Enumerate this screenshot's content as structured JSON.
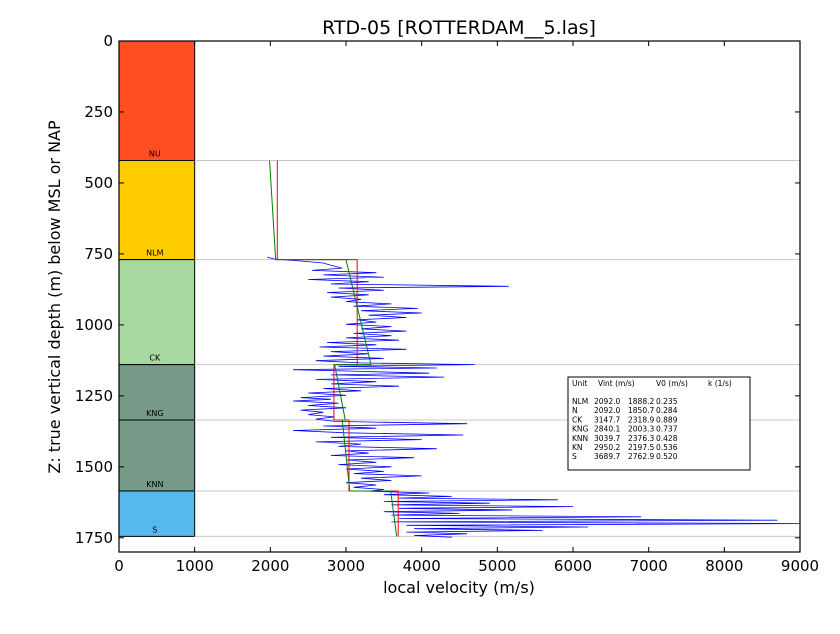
{
  "chart_data": {
    "type": "line",
    "title": "RTD-05 [ROTTERDAM__5.las]",
    "xlabel": "local velocity (m/s)",
    "ylabel": "Z: true vertical depth (m) below MSL or NAP",
    "xlim": [
      0,
      9000
    ],
    "ylim": [
      1800,
      0
    ],
    "y_inverted": true,
    "xticks": [
      0,
      1000,
      2000,
      3000,
      4000,
      5000,
      6000,
      7000,
      8000,
      9000
    ],
    "yticks": [
      0,
      250,
      500,
      750,
      1000,
      1250,
      1500,
      1750
    ],
    "grid": false,
    "colors": {
      "log": "#0000ff",
      "interval_velocity": "#ff0000",
      "v0k_model": "#008000",
      "boundary_line": "#c8c8c8"
    },
    "formations": [
      {
        "name": "NU",
        "top": 0,
        "base": 421,
        "color": "#ff4f22"
      },
      {
        "name": "NLM",
        "top": 421,
        "base": 770,
        "color": "#ffcc00"
      },
      {
        "name": "CK",
        "top": 770,
        "base": 1140,
        "color": "#a6d8a0"
      },
      {
        "name": "KNG",
        "top": 1140,
        "base": 1335,
        "color": "#779988"
      },
      {
        "name": "KNN",
        "top": 1335,
        "base": 1585,
        "color": "#779988"
      },
      {
        "name": "S",
        "top": 1585,
        "base": 1745,
        "color": "#55b9ee"
      }
    ],
    "formation_column_xlim": [
      0,
      1000
    ],
    "table": {
      "header": [
        "Unit",
        "Vint (m/s)",
        "V0 (m/s)",
        "k (1/s)"
      ],
      "rows": [
        [
          "NLM",
          "2092.0",
          "1888.2",
          "0.235"
        ],
        [
          "N",
          "2092.0",
          "1850.7",
          "0.284"
        ],
        [
          "CK",
          "3147.7",
          "2318.9",
          "0.889"
        ],
        [
          "KNG",
          "2840.1",
          "2003.3",
          "0.737"
        ],
        [
          "KNN",
          "3039.7",
          "2376.3",
          "0.428"
        ],
        [
          "KN",
          "2950.2",
          "2197.5",
          "0.536"
        ],
        [
          "S",
          "3689.7",
          "2762.9",
          "0.520"
        ]
      ]
    },
    "series": [
      {
        "kind": "interval_velocity",
        "segments": [
          {
            "top": 421,
            "base": 770,
            "v": 2092.0
          },
          {
            "top": 770,
            "base": 1140,
            "v": 3147.7
          },
          {
            "top": 1140,
            "base": 1335,
            "v": 2840.1
          },
          {
            "top": 1335,
            "base": 1585,
            "v": 3039.7
          },
          {
            "top": 1585,
            "base": 1745,
            "v": 3689.7
          }
        ]
      },
      {
        "kind": "v0k_model",
        "segments": [
          {
            "top": 421,
            "base": 770,
            "v_top": 1990,
            "v_base": 2070
          },
          {
            "top": 770,
            "base": 1140,
            "v_top": 3000,
            "v_base": 3330
          },
          {
            "top": 1140,
            "base": 1335,
            "v_top": 2850,
            "v_base": 2990
          },
          {
            "top": 1335,
            "base": 1585,
            "v_top": 2950,
            "v_base": 3050
          },
          {
            "top": 1585,
            "base": 1745,
            "v_top": 3590,
            "v_base": 3670
          }
        ]
      },
      {
        "kind": "log",
        "points": [
          [
            762,
            1960
          ],
          [
            768,
            2050
          ],
          [
            775,
            2400
          ],
          [
            782,
            2700
          ],
          [
            790,
            2800
          ],
          [
            800,
            2950
          ],
          [
            808,
            2550
          ],
          [
            816,
            3400
          ],
          [
            824,
            2700
          ],
          [
            832,
            3500
          ],
          [
            840,
            2500
          ],
          [
            848,
            3300
          ],
          [
            856,
            2800
          ],
          [
            864,
            5150
          ],
          [
            870,
            2900
          ],
          [
            878,
            3500
          ],
          [
            886,
            2750
          ],
          [
            894,
            3300
          ],
          [
            902,
            2800
          ],
          [
            910,
            3200
          ],
          [
            918,
            3000
          ],
          [
            926,
            3600
          ],
          [
            934,
            3100
          ],
          [
            942,
            3950
          ],
          [
            950,
            3200
          ],
          [
            958,
            4000
          ],
          [
            966,
            3300
          ],
          [
            974,
            3800
          ],
          [
            982,
            3150
          ],
          [
            990,
            3400
          ],
          [
            998,
            3000
          ],
          [
            1006,
            3600
          ],
          [
            1014,
            3200
          ],
          [
            1022,
            3800
          ],
          [
            1030,
            3100
          ],
          [
            1038,
            3600
          ],
          [
            1046,
            3000
          ],
          [
            1054,
            3700
          ],
          [
            1062,
            2750
          ],
          [
            1070,
            3400
          ],
          [
            1078,
            2650
          ],
          [
            1086,
            3800
          ],
          [
            1094,
            2800
          ],
          [
            1102,
            3300
          ],
          [
            1110,
            2700
          ],
          [
            1118,
            3500
          ],
          [
            1126,
            2600
          ],
          [
            1134,
            3200
          ],
          [
            1140,
            4700
          ],
          [
            1146,
            2900
          ],
          [
            1152,
            4200
          ],
          [
            1158,
            2300
          ],
          [
            1164,
            3200
          ],
          [
            1170,
            4100
          ],
          [
            1176,
            2800
          ],
          [
            1184,
            4300
          ],
          [
            1192,
            2600
          ],
          [
            1200,
            3400
          ],
          [
            1208,
            2800
          ],
          [
            1216,
            3700
          ],
          [
            1224,
            2700
          ],
          [
            1232,
            3200
          ],
          [
            1240,
            2500
          ],
          [
            1248,
            3000
          ],
          [
            1256,
            2400
          ],
          [
            1262,
            2800
          ],
          [
            1268,
            2300
          ],
          [
            1276,
            2900
          ],
          [
            1284,
            2500
          ],
          [
            1292,
            3000
          ],
          [
            1300,
            2400
          ],
          [
            1308,
            2700
          ],
          [
            1316,
            2500
          ],
          [
            1324,
            2850
          ],
          [
            1332,
            2600
          ],
          [
            1340,
            2850
          ],
          [
            1348,
            4600
          ],
          [
            1356,
            2700
          ],
          [
            1364,
            3400
          ],
          [
            1372,
            2300
          ],
          [
            1380,
            3000
          ],
          [
            1388,
            4550
          ],
          [
            1396,
            2800
          ],
          [
            1404,
            4000
          ],
          [
            1412,
            2600
          ],
          [
            1420,
            3200
          ],
          [
            1428,
            2900
          ],
          [
            1436,
            4200
          ],
          [
            1444,
            3000
          ],
          [
            1452,
            3300
          ],
          [
            1460,
            2800
          ],
          [
            1468,
            3900
          ],
          [
            1476,
            3000
          ],
          [
            1484,
            3400
          ],
          [
            1492,
            2900
          ],
          [
            1500,
            3600
          ],
          [
            1508,
            3000
          ],
          [
            1516,
            3500
          ],
          [
            1524,
            3100
          ],
          [
            1532,
            4000
          ],
          [
            1540,
            3200
          ],
          [
            1548,
            3600
          ],
          [
            1556,
            3000
          ],
          [
            1564,
            3400
          ],
          [
            1572,
            3100
          ],
          [
            1580,
            3500
          ],
          [
            1586,
            3300
          ],
          [
            1592,
            4100
          ],
          [
            1598,
            3500
          ],
          [
            1604,
            4400
          ],
          [
            1610,
            3700
          ],
          [
            1616,
            5800
          ],
          [
            1622,
            3500
          ],
          [
            1628,
            4900
          ],
          [
            1634,
            3600
          ],
          [
            1640,
            6000
          ],
          [
            1646,
            3700
          ],
          [
            1652,
            5200
          ],
          [
            1658,
            3500
          ],
          [
            1664,
            4500
          ],
          [
            1670,
            3600
          ],
          [
            1676,
            6900
          ],
          [
            1682,
            3700
          ],
          [
            1688,
            8700
          ],
          [
            1694,
            3600
          ],
          [
            1700,
            9000
          ],
          [
            1706,
            3800
          ],
          [
            1712,
            6200
          ],
          [
            1718,
            3900
          ],
          [
            1724,
            5600
          ],
          [
            1730,
            3800
          ],
          [
            1736,
            4600
          ],
          [
            1742,
            3900
          ],
          [
            1748,
            4400
          ]
        ]
      }
    ]
  }
}
